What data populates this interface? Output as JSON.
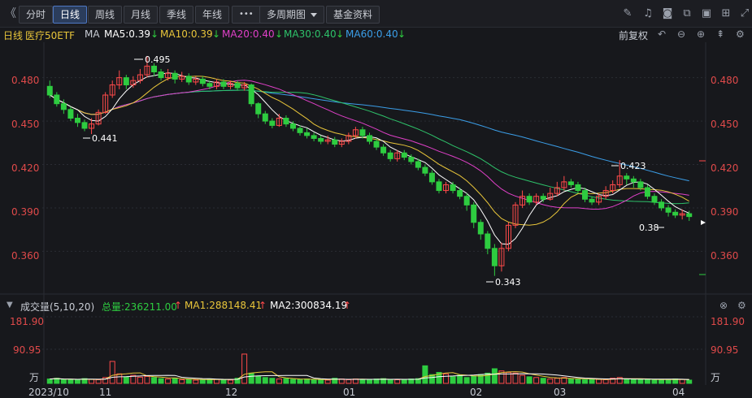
{
  "toolbar": {
    "collapse_icon": "double-chevron-left",
    "tabs": [
      "分时",
      "日线",
      "周线",
      "月线",
      "季线",
      "年线"
    ],
    "active_tab": "日线",
    "more_label": "•••",
    "multi_period_label": "多周期图",
    "fund_info_label": "基金资料",
    "right_icons": [
      "edit-icon",
      "bell-icon",
      "camera-icon",
      "copy-icon",
      "layers-icon",
      "grid-icon",
      "expand-icon"
    ]
  },
  "ma_bar": {
    "period": "日线",
    "name": "医疗50ETF",
    "ma_label": "MA",
    "ma5": "MA5:0.39",
    "ma10": "MA10:0.39",
    "ma20": "MA20:0.40",
    "ma30": "MA30:0.40",
    "ma60": "MA60:0.40",
    "adjust_label": "前复权",
    "colors": {
      "ma5": "#ffffff",
      "ma10": "#e8c53a",
      "ma20": "#e040c8",
      "ma30": "#2ec26a",
      "ma60": "#3b9ee8",
      "up": "#ff4a4a",
      "down": "#2ecc40"
    }
  },
  "price_axis": [
    "0.480",
    "0.450",
    "0.420",
    "0.390",
    "0.360"
  ],
  "annotations": {
    "high": "0.495",
    "low1": "0.441",
    "low2": "0.343",
    "high2": "0.423",
    "last": "0.38"
  },
  "volume_bar": {
    "title": "成交量(5,10,20)",
    "total": "总量:236211.00",
    "ma1": "MA1:288148.41",
    "ma2": "MA2:300834.19"
  },
  "volume_axis": [
    "181.90",
    "90.95",
    "万"
  ],
  "date_axis": [
    "2023/10",
    "11",
    "12",
    "01",
    "02",
    "03",
    "04"
  ],
  "chart_data": {
    "type": "candlestick",
    "ylim": [
      0.34,
      0.5
    ],
    "candles": [
      [
        0.474,
        0.468,
        0.478,
        0.466
      ],
      [
        0.468,
        0.462,
        0.47,
        0.46
      ],
      [
        0.462,
        0.458,
        0.465,
        0.455
      ],
      [
        0.458,
        0.452,
        0.46,
        0.45
      ],
      [
        0.452,
        0.449,
        0.455,
        0.446
      ],
      [
        0.449,
        0.445,
        0.451,
        0.443
      ],
      [
        0.445,
        0.448,
        0.452,
        0.441
      ],
      [
        0.448,
        0.456,
        0.458,
        0.447
      ],
      [
        0.456,
        0.468,
        0.47,
        0.455
      ],
      [
        0.468,
        0.475,
        0.478,
        0.466
      ],
      [
        0.475,
        0.48,
        0.485,
        0.472
      ],
      [
        0.48,
        0.475,
        0.482,
        0.472
      ],
      [
        0.475,
        0.478,
        0.481,
        0.473
      ],
      [
        0.478,
        0.482,
        0.486,
        0.476
      ],
      [
        0.482,
        0.488,
        0.495,
        0.48
      ],
      [
        0.488,
        0.484,
        0.49,
        0.481
      ],
      [
        0.484,
        0.48,
        0.486,
        0.478
      ],
      [
        0.48,
        0.483,
        0.486,
        0.478
      ],
      [
        0.483,
        0.479,
        0.485,
        0.476
      ],
      [
        0.479,
        0.481,
        0.484,
        0.477
      ],
      [
        0.481,
        0.477,
        0.483,
        0.475
      ],
      [
        0.477,
        0.479,
        0.481,
        0.475
      ],
      [
        0.479,
        0.476,
        0.481,
        0.474
      ],
      [
        0.476,
        0.474,
        0.478,
        0.472
      ],
      [
        0.474,
        0.477,
        0.479,
        0.472
      ],
      [
        0.477,
        0.474,
        0.479,
        0.472
      ],
      [
        0.474,
        0.476,
        0.478,
        0.472
      ],
      [
        0.476,
        0.473,
        0.478,
        0.471
      ],
      [
        0.473,
        0.475,
        0.477,
        0.471
      ],
      [
        0.475,
        0.462,
        0.476,
        0.46
      ],
      [
        0.462,
        0.455,
        0.463,
        0.452
      ],
      [
        0.455,
        0.45,
        0.457,
        0.448
      ],
      [
        0.45,
        0.447,
        0.452,
        0.445
      ],
      [
        0.447,
        0.452,
        0.455,
        0.446
      ],
      [
        0.452,
        0.448,
        0.454,
        0.446
      ],
      [
        0.448,
        0.445,
        0.45,
        0.443
      ],
      [
        0.445,
        0.442,
        0.447,
        0.44
      ],
      [
        0.442,
        0.44,
        0.445,
        0.438
      ],
      [
        0.44,
        0.438,
        0.442,
        0.436
      ],
      [
        0.438,
        0.436,
        0.44,
        0.434
      ],
      [
        0.436,
        0.437,
        0.44,
        0.434
      ],
      [
        0.437,
        0.434,
        0.439,
        0.432
      ],
      [
        0.434,
        0.436,
        0.438,
        0.432
      ],
      [
        0.436,
        0.44,
        0.442,
        0.434
      ],
      [
        0.44,
        0.444,
        0.446,
        0.438
      ],
      [
        0.444,
        0.44,
        0.446,
        0.438
      ],
      [
        0.44,
        0.436,
        0.442,
        0.434
      ],
      [
        0.436,
        0.432,
        0.438,
        0.43
      ],
      [
        0.432,
        0.428,
        0.434,
        0.426
      ],
      [
        0.428,
        0.424,
        0.43,
        0.422
      ],
      [
        0.424,
        0.428,
        0.43,
        0.422
      ],
      [
        0.428,
        0.425,
        0.43,
        0.423
      ],
      [
        0.425,
        0.422,
        0.427,
        0.42
      ],
      [
        0.422,
        0.418,
        0.424,
        0.416
      ],
      [
        0.418,
        0.414,
        0.42,
        0.412
      ],
      [
        0.414,
        0.408,
        0.416,
        0.406
      ],
      [
        0.408,
        0.402,
        0.41,
        0.4
      ],
      [
        0.402,
        0.406,
        0.408,
        0.4
      ],
      [
        0.406,
        0.402,
        0.408,
        0.4
      ],
      [
        0.402,
        0.398,
        0.404,
        0.396
      ],
      [
        0.398,
        0.392,
        0.4,
        0.388
      ],
      [
        0.392,
        0.38,
        0.394,
        0.376
      ],
      [
        0.38,
        0.372,
        0.382,
        0.368
      ],
      [
        0.372,
        0.362,
        0.374,
        0.358
      ],
      [
        0.362,
        0.35,
        0.365,
        0.343
      ],
      [
        0.35,
        0.362,
        0.366,
        0.346
      ],
      [
        0.362,
        0.378,
        0.38,
        0.36
      ],
      [
        0.378,
        0.392,
        0.394,
        0.376
      ],
      [
        0.392,
        0.398,
        0.402,
        0.39
      ],
      [
        0.398,
        0.394,
        0.4,
        0.392
      ],
      [
        0.394,
        0.398,
        0.4,
        0.392
      ],
      [
        0.398,
        0.396,
        0.4,
        0.394
      ],
      [
        0.396,
        0.4,
        0.404,
        0.395
      ],
      [
        0.4,
        0.404,
        0.408,
        0.398
      ],
      [
        0.404,
        0.408,
        0.412,
        0.402
      ],
      [
        0.408,
        0.406,
        0.41,
        0.404
      ],
      [
        0.406,
        0.402,
        0.408,
        0.4
      ],
      [
        0.402,
        0.396,
        0.404,
        0.394
      ],
      [
        0.396,
        0.394,
        0.398,
        0.392
      ],
      [
        0.394,
        0.398,
        0.4,
        0.392
      ],
      [
        0.398,
        0.402,
        0.405,
        0.396
      ],
      [
        0.402,
        0.406,
        0.409,
        0.4
      ],
      [
        0.406,
        0.412,
        0.423,
        0.404
      ],
      [
        0.412,
        0.41,
        0.414,
        0.406
      ],
      [
        0.41,
        0.408,
        0.412,
        0.404
      ],
      [
        0.408,
        0.404,
        0.41,
        0.402
      ],
      [
        0.404,
        0.398,
        0.406,
        0.396
      ],
      [
        0.398,
        0.394,
        0.4,
        0.392
      ],
      [
        0.394,
        0.39,
        0.396,
        0.388
      ],
      [
        0.39,
        0.387,
        0.392,
        0.384
      ],
      [
        0.387,
        0.385,
        0.389,
        0.383
      ],
      [
        0.385,
        0.386,
        0.389,
        0.382
      ],
      [
        0.386,
        0.384,
        0.388,
        0.381
      ]
    ],
    "volumes": [
      12,
      14,
      10,
      11,
      9,
      13,
      11,
      10,
      16,
      60,
      26,
      18,
      22,
      17,
      19,
      16,
      13,
      12,
      14,
      10,
      11,
      9,
      10,
      12,
      11,
      10,
      9,
      14,
      80,
      28,
      20,
      16,
      14,
      12,
      13,
      11,
      10,
      12,
      11,
      10,
      9,
      14,
      12,
      10,
      12,
      11,
      10,
      12,
      13,
      9,
      10,
      11,
      12,
      13,
      48,
      24,
      30,
      26,
      18,
      22,
      16,
      20,
      24,
      28,
      40,
      34,
      30,
      28,
      22,
      18,
      16,
      14,
      12,
      14,
      16,
      12,
      11,
      10,
      12,
      11,
      10,
      14,
      16,
      12,
      11,
      10,
      12,
      9,
      11,
      10,
      12,
      11,
      9
    ]
  }
}
